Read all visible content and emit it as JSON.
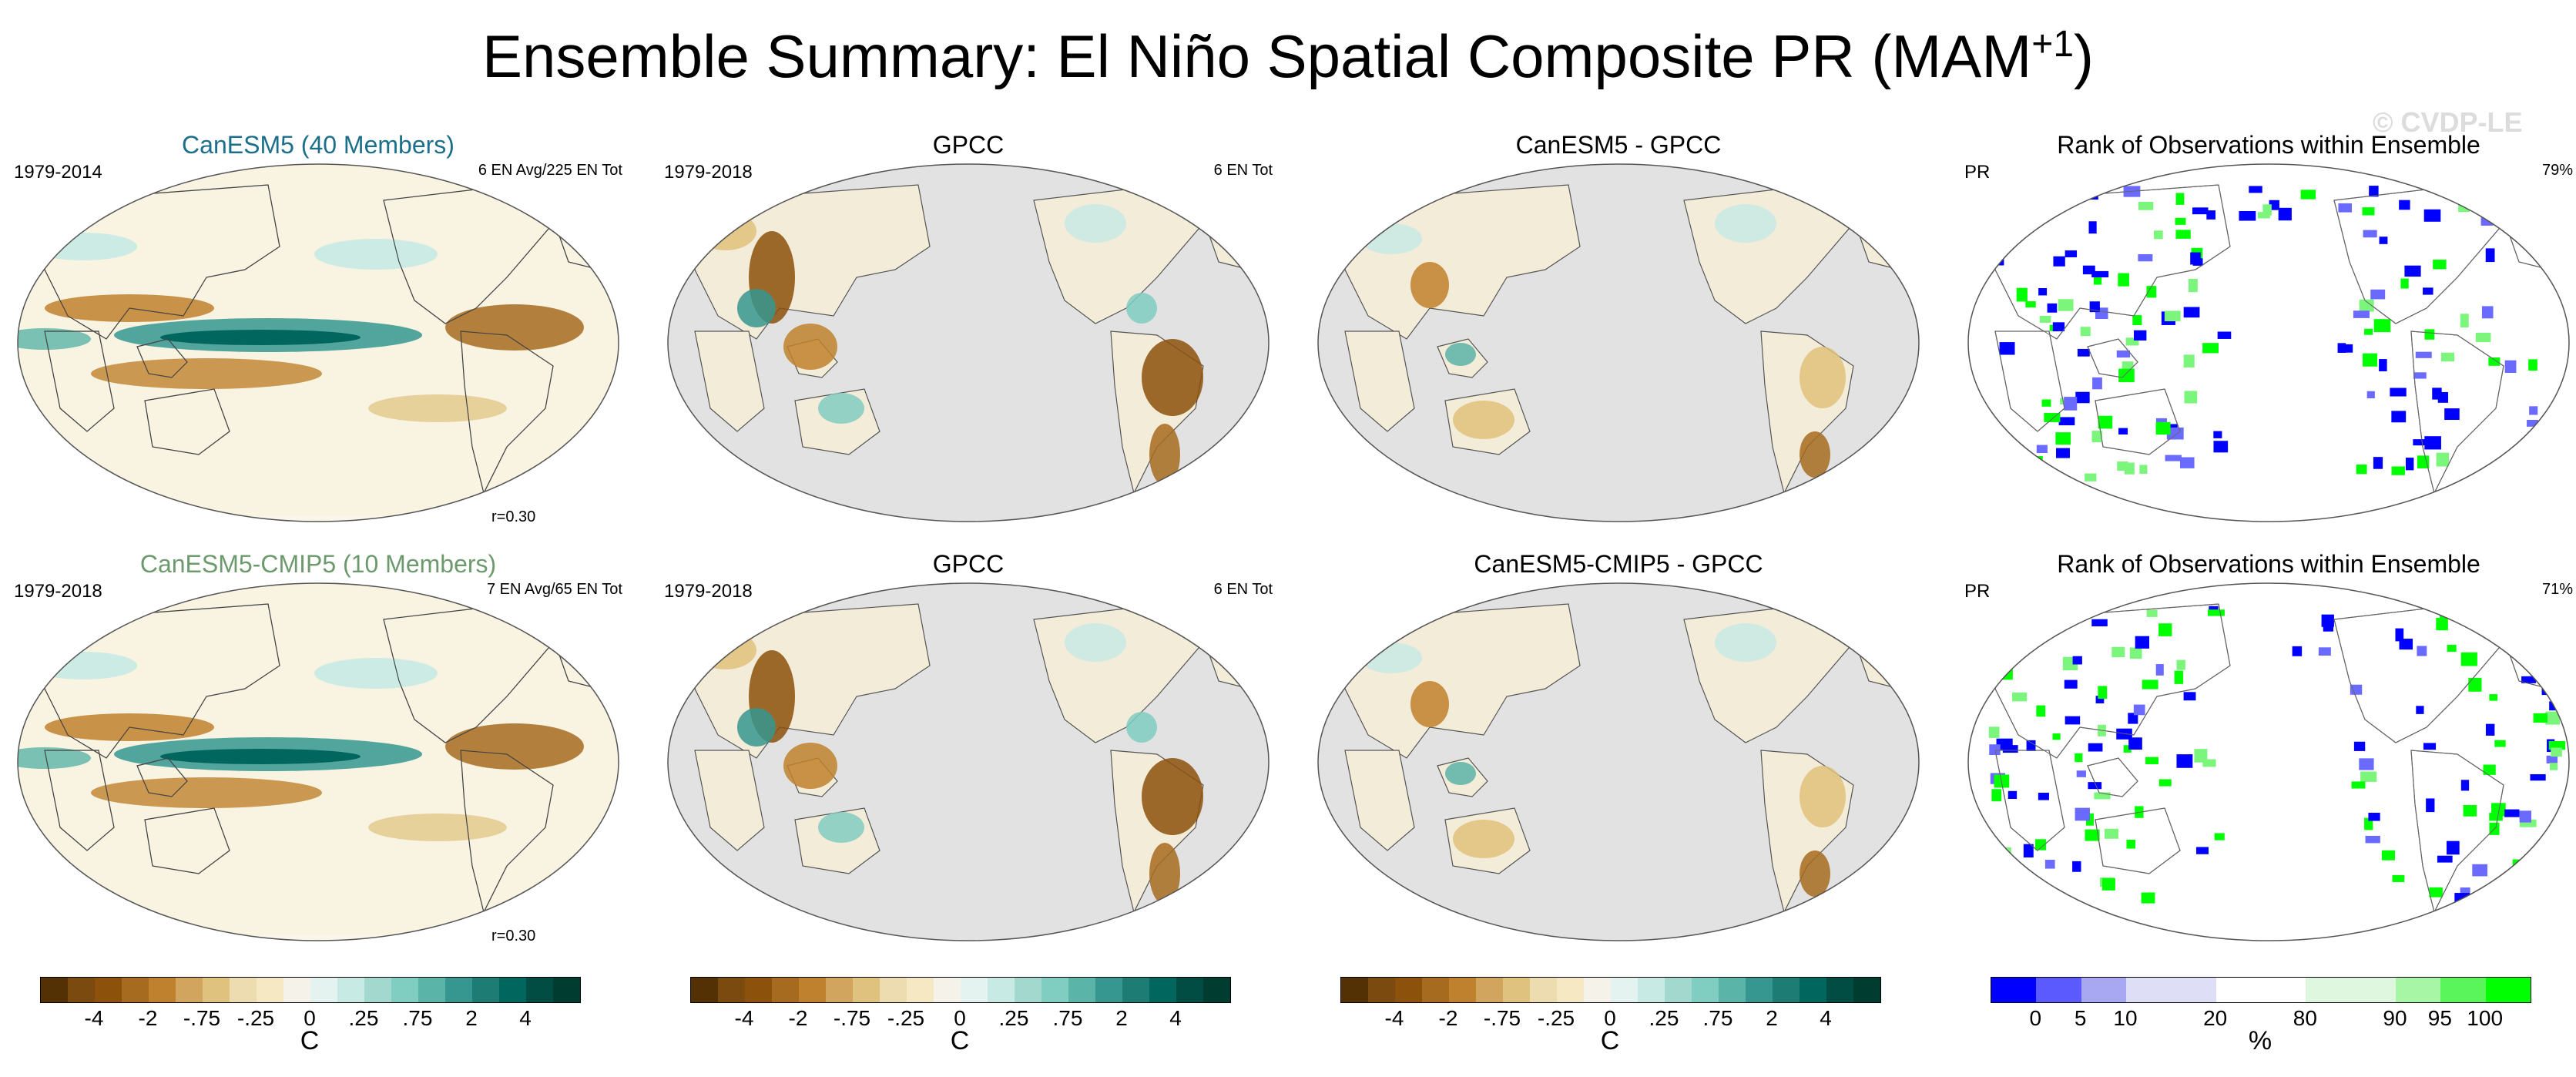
{
  "title": {
    "main": "Ensemble Summary: El Niño Spatial Composite PR (MAM",
    "sup": "+1",
    "close": ")"
  },
  "watermark": "© CVDP-LE",
  "panels": [
    {
      "title": "CanESM5 (40 Members)",
      "left": "1979-2014",
      "right": "6 EN Avg/225 EN Tot",
      "corr": "r=0.30"
    },
    {
      "title": "GPCC",
      "left": "1979-2018",
      "right": "6 EN Tot"
    },
    {
      "title": "CanESM5 - GPCC"
    },
    {
      "title": "Rank of Observations within Ensemble",
      "left": "PR",
      "right": "79%"
    },
    {
      "title": "CanESM5-CMIP5 (10 Members)",
      "left": "1979-2018",
      "right": "7 EN Avg/65 EN Tot",
      "corr": "r=0.30"
    },
    {
      "title": "GPCC",
      "left": "1979-2018",
      "right": "6 EN Tot"
    },
    {
      "title": "CanESM5-CMIP5 - GPCC"
    },
    {
      "title": "Rank of Observations within Ensemble",
      "left": "PR",
      "right": "71%"
    }
  ],
  "colorbars": {
    "brbg": {
      "colors": [
        "#543005",
        "#7a4a0f",
        "#8c510a",
        "#a66b1f",
        "#bf812d",
        "#d2a55f",
        "#dfc27d",
        "#ecdcb0",
        "#f6e8c3",
        "#f5f2ea",
        "#e4f2f0",
        "#c7eae5",
        "#a3d8cf",
        "#80cdc1",
        "#5ab4a8",
        "#35978f",
        "#1d7d74",
        "#01665e",
        "#014d44",
        "#003c30"
      ],
      "labels": [
        "-4",
        "-2",
        "-.75",
        "-.25",
        "0",
        ".25",
        ".75",
        "2",
        "4"
      ],
      "unit": "C"
    },
    "rank": {
      "colors": [
        "#0000ff",
        "#5a5aff",
        "#a8a8f2",
        "#dedef7",
        "#dedef7",
        "#ffffff",
        "#ffffff",
        "#dff7df",
        "#dff7df",
        "#a6f6a6",
        "#5af55a",
        "#00ff00"
      ],
      "labels": [
        "0",
        "5",
        "10",
        "20",
        "80",
        "90",
        "95",
        "100"
      ],
      "unit": "%"
    }
  },
  "chart_data": {
    "type": "heatmap",
    "title": "Ensemble Summary: El Niño Spatial Composite PR (MAM+1)",
    "variable": "PR",
    "season": "MAM+1",
    "panels": [
      {
        "row": 1,
        "col": 1,
        "name": "CanESM5 (40 Members)",
        "period": "1979-2014",
        "events": "6 EN Avg/225 EN Tot",
        "pattern_correlation": 0.3
      },
      {
        "row": 1,
        "col": 2,
        "name": "GPCC",
        "period": "1979-2018",
        "events": "6 EN Tot"
      },
      {
        "row": 1,
        "col": 3,
        "name": "CanESM5 - GPCC"
      },
      {
        "row": 1,
        "col": 4,
        "name": "Rank of Observations within Ensemble",
        "variable": "PR",
        "percent": 79
      },
      {
        "row": 2,
        "col": 1,
        "name": "CanESM5-CMIP5 (10 Members)",
        "period": "1979-2018",
        "events": "7 EN Avg/65 EN Tot",
        "pattern_correlation": 0.3
      },
      {
        "row": 2,
        "col": 2,
        "name": "GPCC",
        "period": "1979-2018",
        "events": "6 EN Tot"
      },
      {
        "row": 2,
        "col": 3,
        "name": "CanESM5-CMIP5 - GPCC"
      },
      {
        "row": 2,
        "col": 4,
        "name": "Rank of Observations within Ensemble",
        "variable": "PR",
        "percent": 71
      }
    ],
    "composite_levels": [
      -4,
      -2,
      -0.75,
      -0.25,
      0,
      0.25,
      0.75,
      2,
      4
    ],
    "composite_unit": "C",
    "rank_levels": [
      0,
      5,
      10,
      20,
      80,
      90,
      95,
      100
    ],
    "rank_unit": "%"
  }
}
